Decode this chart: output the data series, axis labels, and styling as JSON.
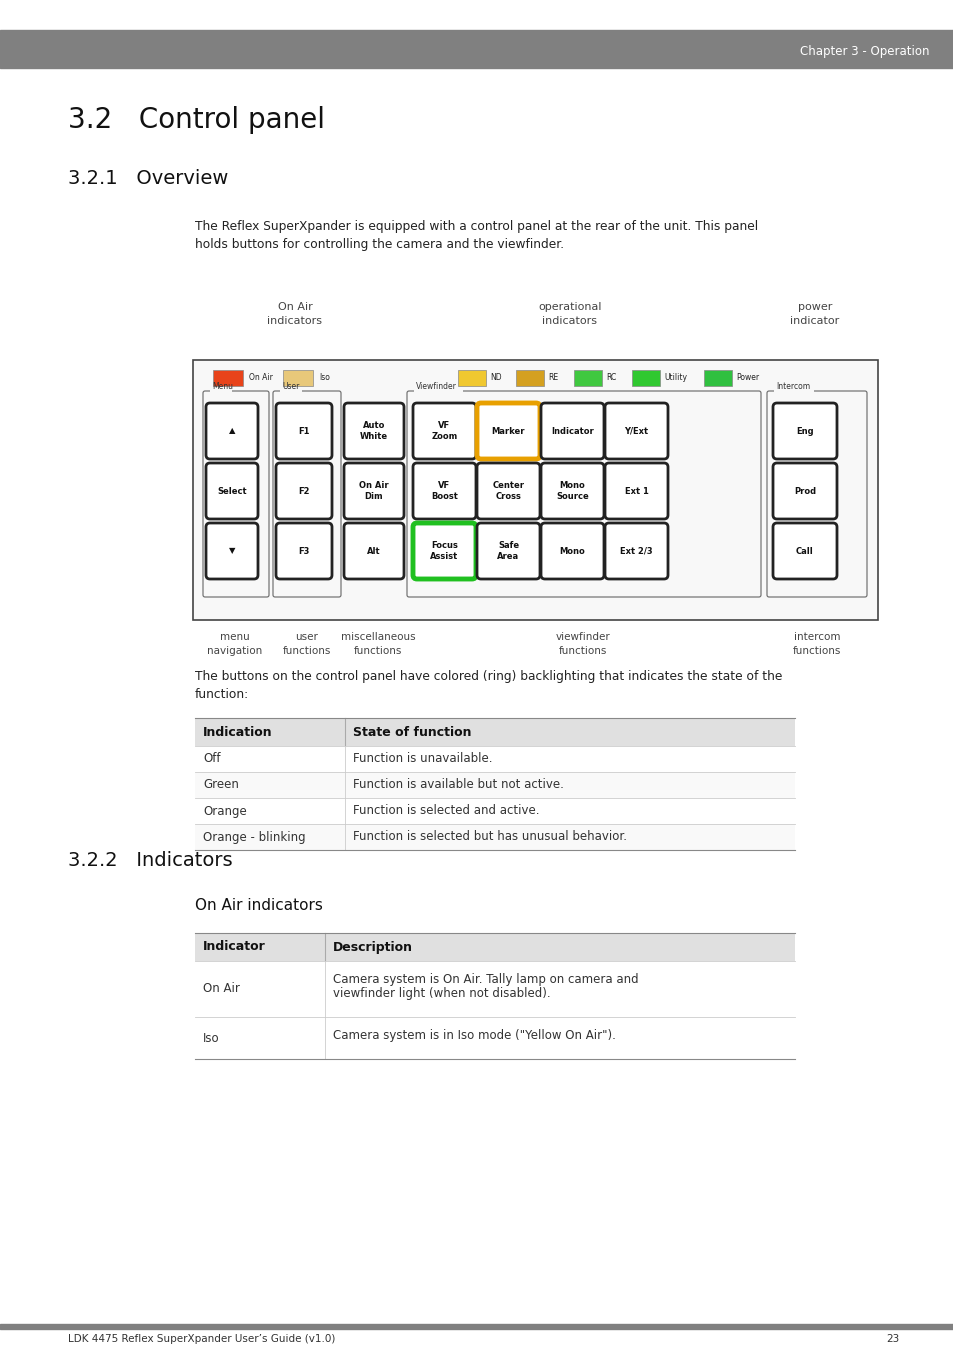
{
  "page_bg": "#ffffff",
  "header_bg": "#808080",
  "header_text": "Chapter 3 - Operation",
  "header_text_color": "#ffffff",
  "title_32": "3.2   Control panel",
  "subtitle_321": "3.2.1   Overview",
  "body_text_1": "The Reflex SuperXpander is equipped with a control panel at the rear of the unit. This panel\nholds buttons for controlling the camera and the viewfinder.",
  "label_on_air_indicators": "On Air\nindicators",
  "label_operational_indicators": "operational\nindicators",
  "label_power_indicator": "power\nindicator",
  "label_menu_nav": "menu\nnavigation",
  "label_user_functions": "user\nfunctions",
  "label_misc_functions": "miscellaneous\nfunctions",
  "label_viewfinder_functions": "viewfinder\nfunctions",
  "label_intercom_functions": "intercom\nfunctions",
  "body_text_2": "The buttons on the control panel have colored (ring) backlighting that indicates the state of the\nfunction:",
  "table1_header": [
    "Indication",
    "State of function"
  ],
  "table1_rows": [
    [
      "Off",
      "Function is unavailable."
    ],
    [
      "Green",
      "Function is available but not active."
    ],
    [
      "Orange",
      "Function is selected and active."
    ],
    [
      "Orange - blinking",
      "Function is selected but has unusual behavior."
    ]
  ],
  "subtitle_322": "3.2.2   Indicators",
  "subtitle_on_air": "On Air indicators",
  "table2_header": [
    "Indicator",
    "Description"
  ],
  "table2_rows": [
    [
      "On Air",
      "Camera system is On Air. Tally lamp on camera and\nviewfinder light (when not disabled)."
    ],
    [
      "Iso",
      "Camera system is in Iso mode (\"Yellow On Air\")."
    ]
  ],
  "footer_text": "LDK 4475 Reflex SuperXpander User’s Guide (v1.0)",
  "footer_page": "23",
  "color_on_air": "#e8431a",
  "color_iso": "#e8c87a",
  "color_nd": "#f0c830",
  "color_re": "#d4a020",
  "color_rc": "#40c840",
  "color_utility": "#30c830",
  "color_power": "#30c040",
  "color_marker": "#e8a000",
  "color_focus_assist": "#20c020"
}
